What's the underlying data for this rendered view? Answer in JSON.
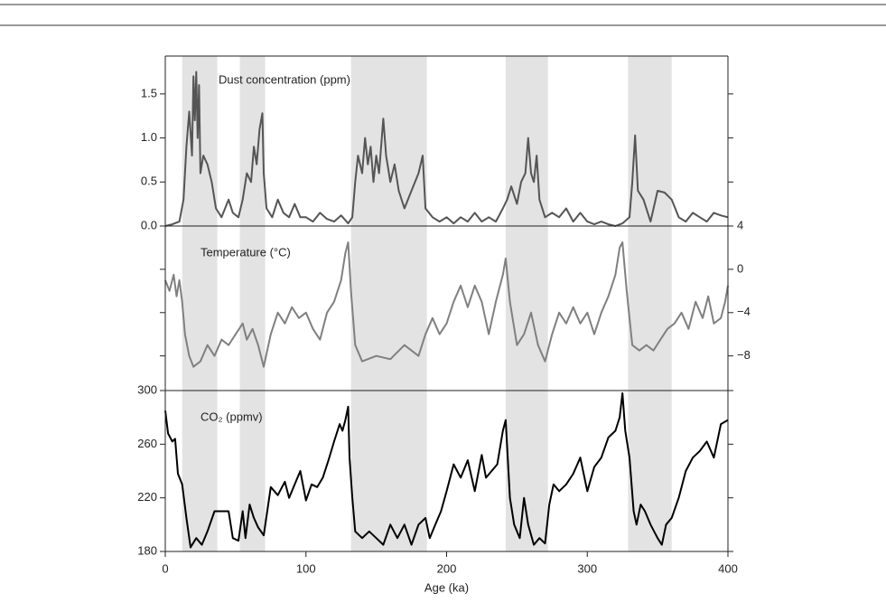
{
  "shaded_regions": [
    [
      12,
      37
    ],
    [
      53,
      71
    ],
    [
      132,
      186
    ],
    [
      242,
      272
    ],
    [
      329,
      360
    ]
  ],
  "chart_data": [
    {
      "type": "line",
      "label": "Dust concentration (ppm)",
      "color": "#555555",
      "ytick_side": "left",
      "xlim": [
        0,
        400
      ],
      "ylim": [
        0,
        1.93
      ],
      "yticks": [
        {
          "value": 0,
          "label": "0.0"
        },
        0.5,
        {
          "value": 1,
          "label": "1.0"
        },
        1.5
      ],
      "x": [
        0,
        5,
        10,
        13,
        15,
        17,
        19,
        20,
        21,
        22,
        23,
        24,
        25,
        27,
        30,
        33,
        36,
        40,
        45,
        48,
        52,
        55,
        58,
        61,
        63,
        65,
        67,
        69,
        70,
        72,
        76,
        80,
        84,
        88,
        92,
        96,
        100,
        105,
        110,
        115,
        120,
        125,
        130,
        133,
        135,
        137,
        140,
        142,
        144,
        146,
        148,
        150,
        152,
        155,
        157,
        160,
        163,
        166,
        170,
        175,
        180,
        183,
        185,
        190,
        195,
        200,
        205,
        210,
        215,
        220,
        225,
        230,
        235,
        240,
        243,
        246,
        250,
        253,
        256,
        258,
        260,
        262,
        264,
        266,
        270,
        275,
        280,
        285,
        290,
        295,
        300,
        305,
        310,
        315,
        320,
        325,
        330,
        332,
        334,
        336,
        340,
        345,
        350,
        355,
        360,
        365,
        370,
        375,
        380,
        385,
        390,
        395,
        400
      ],
      "values": [
        0,
        0.02,
        0.05,
        0.3,
        0.9,
        1.3,
        0.8,
        1.7,
        1.2,
        1.75,
        1.0,
        1.6,
        0.6,
        0.8,
        0.7,
        0.5,
        0.2,
        0.1,
        0.3,
        0.15,
        0.1,
        0.3,
        0.6,
        0.5,
        0.9,
        0.7,
        1.1,
        1.28,
        0.6,
        0.2,
        0.1,
        0.3,
        0.15,
        0.1,
        0.25,
        0.1,
        0.1,
        0.05,
        0.15,
        0.08,
        0.05,
        0.12,
        0.03,
        0.1,
        0.5,
        0.8,
        0.6,
        1.0,
        0.7,
        0.9,
        0.5,
        0.8,
        0.6,
        1.22,
        0.8,
        0.5,
        0.7,
        0.4,
        0.2,
        0.4,
        0.6,
        0.8,
        0.2,
        0.1,
        0.05,
        0.1,
        0.03,
        0.1,
        0.05,
        0.15,
        0.05,
        0.1,
        0.05,
        0.2,
        0.3,
        0.45,
        0.25,
        0.5,
        0.6,
        1.0,
        0.6,
        0.5,
        0.8,
        0.3,
        0.1,
        0.15,
        0.1,
        0.2,
        0.05,
        0.15,
        0.05,
        0.02,
        0.05,
        0.02,
        0,
        0.03,
        0.1,
        0.5,
        1.03,
        0.4,
        0.3,
        0.05,
        0.4,
        0.38,
        0.3,
        0.1,
        0.05,
        0.15,
        0.1,
        0.05,
        0.15,
        0.12,
        0.1
      ]
    },
    {
      "type": "line",
      "label": "Temperature (°C)",
      "color": "#808080",
      "ytick_side": "right",
      "xlim": [
        0,
        400
      ],
      "ylim": [
        -11.2,
        4
      ],
      "yticks": [
        {
          "value": -8,
          "label": "−8"
        },
        {
          "value": -4,
          "label": "−4"
        },
        0,
        4
      ],
      "x": [
        0,
        3,
        6,
        8,
        10,
        12,
        14,
        17,
        20,
        25,
        30,
        35,
        40,
        45,
        50,
        55,
        58,
        62,
        66,
        70,
        75,
        80,
        85,
        90,
        95,
        100,
        105,
        110,
        115,
        120,
        125,
        128,
        130,
        132,
        135,
        140,
        150,
        160,
        170,
        180,
        185,
        190,
        195,
        200,
        205,
        210,
        215,
        220,
        225,
        230,
        235,
        240,
        242,
        245,
        250,
        255,
        260,
        265,
        270,
        275,
        280,
        285,
        290,
        295,
        300,
        305,
        310,
        315,
        320,
        323,
        325,
        328,
        332,
        337,
        342,
        347,
        352,
        357,
        362,
        367,
        372,
        377,
        382,
        386,
        390,
        395,
        398,
        400
      ],
      "values": [
        -1,
        -2,
        -0.5,
        -2.5,
        -1,
        -3,
        -6,
        -8,
        -9,
        -8.5,
        -7,
        -8,
        -6.5,
        -7,
        -6,
        -5,
        -6.5,
        -5.5,
        -7,
        -9,
        -6,
        -4,
        -5,
        -3.5,
        -4.5,
        -4,
        -5.5,
        -6.5,
        -4,
        -3,
        -1,
        1.5,
        2.5,
        -2,
        -7,
        -8.5,
        -8,
        -8.3,
        -7,
        -8,
        -6,
        -4.5,
        -6,
        -5,
        -3,
        -1.5,
        -3.5,
        -1.5,
        -3,
        -6,
        -3,
        -0.5,
        1,
        -3,
        -7,
        -6,
        -4,
        -7,
        -8.5,
        -6,
        -4,
        -5,
        -3.5,
        -5,
        -4,
        -6,
        -4,
        -2.5,
        -0.5,
        2,
        2.5,
        -2,
        -7,
        -7.5,
        -7,
        -7.5,
        -6.5,
        -5.5,
        -5,
        -4,
        -5.5,
        -3,
        -4.5,
        -2.5,
        -5,
        -4.5,
        -3,
        -1.5
      ]
    },
    {
      "type": "line",
      "label": "CO₂ (ppmv)",
      "color": "#000000",
      "ytick_side": "left",
      "xlim": [
        0,
        400
      ],
      "ylim": [
        180,
        300
      ],
      "yticks": [
        180,
        220,
        260,
        300
      ],
      "xticks": [
        0,
        100,
        200,
        300,
        400
      ],
      "xlabel": "Age (ka)",
      "x": [
        0,
        2,
        5,
        7,
        9,
        12,
        15,
        18,
        22,
        26,
        30,
        35,
        40,
        45,
        48,
        52,
        55,
        57,
        60,
        63,
        66,
        70,
        75,
        80,
        85,
        88,
        92,
        96,
        100,
        104,
        108,
        112,
        116,
        120,
        124,
        126,
        128,
        130,
        131,
        133,
        135,
        140,
        145,
        150,
        155,
        160,
        165,
        170,
        175,
        180,
        185,
        188,
        192,
        196,
        200,
        205,
        210,
        215,
        220,
        225,
        228,
        232,
        236,
        240,
        242,
        245,
        248,
        252,
        255,
        258,
        262,
        266,
        270,
        273,
        276,
        280,
        285,
        290,
        295,
        300,
        305,
        310,
        315,
        320,
        323,
        325,
        327,
        330,
        333,
        335,
        338,
        341,
        345,
        350,
        353,
        356,
        360,
        365,
        370,
        375,
        380,
        385,
        390,
        395,
        400
      ],
      "values": [
        285,
        268,
        262,
        264,
        238,
        230,
        205,
        183,
        190,
        185,
        195,
        210,
        210,
        210,
        190,
        188,
        210,
        190,
        215,
        205,
        198,
        192,
        228,
        222,
        232,
        220,
        230,
        240,
        218,
        230,
        228,
        235,
        248,
        262,
        275,
        270,
        278,
        288,
        250,
        220,
        195,
        190,
        195,
        190,
        185,
        200,
        190,
        200,
        185,
        200,
        205,
        190,
        200,
        210,
        225,
        245,
        235,
        248,
        225,
        252,
        235,
        240,
        245,
        270,
        278,
        220,
        200,
        190,
        220,
        200,
        185,
        190,
        186,
        215,
        230,
        225,
        230,
        238,
        250,
        225,
        243,
        250,
        265,
        270,
        280,
        298,
        270,
        250,
        210,
        200,
        215,
        210,
        200,
        190,
        185,
        200,
        205,
        220,
        240,
        250,
        255,
        262,
        250,
        275,
        278
      ]
    }
  ]
}
